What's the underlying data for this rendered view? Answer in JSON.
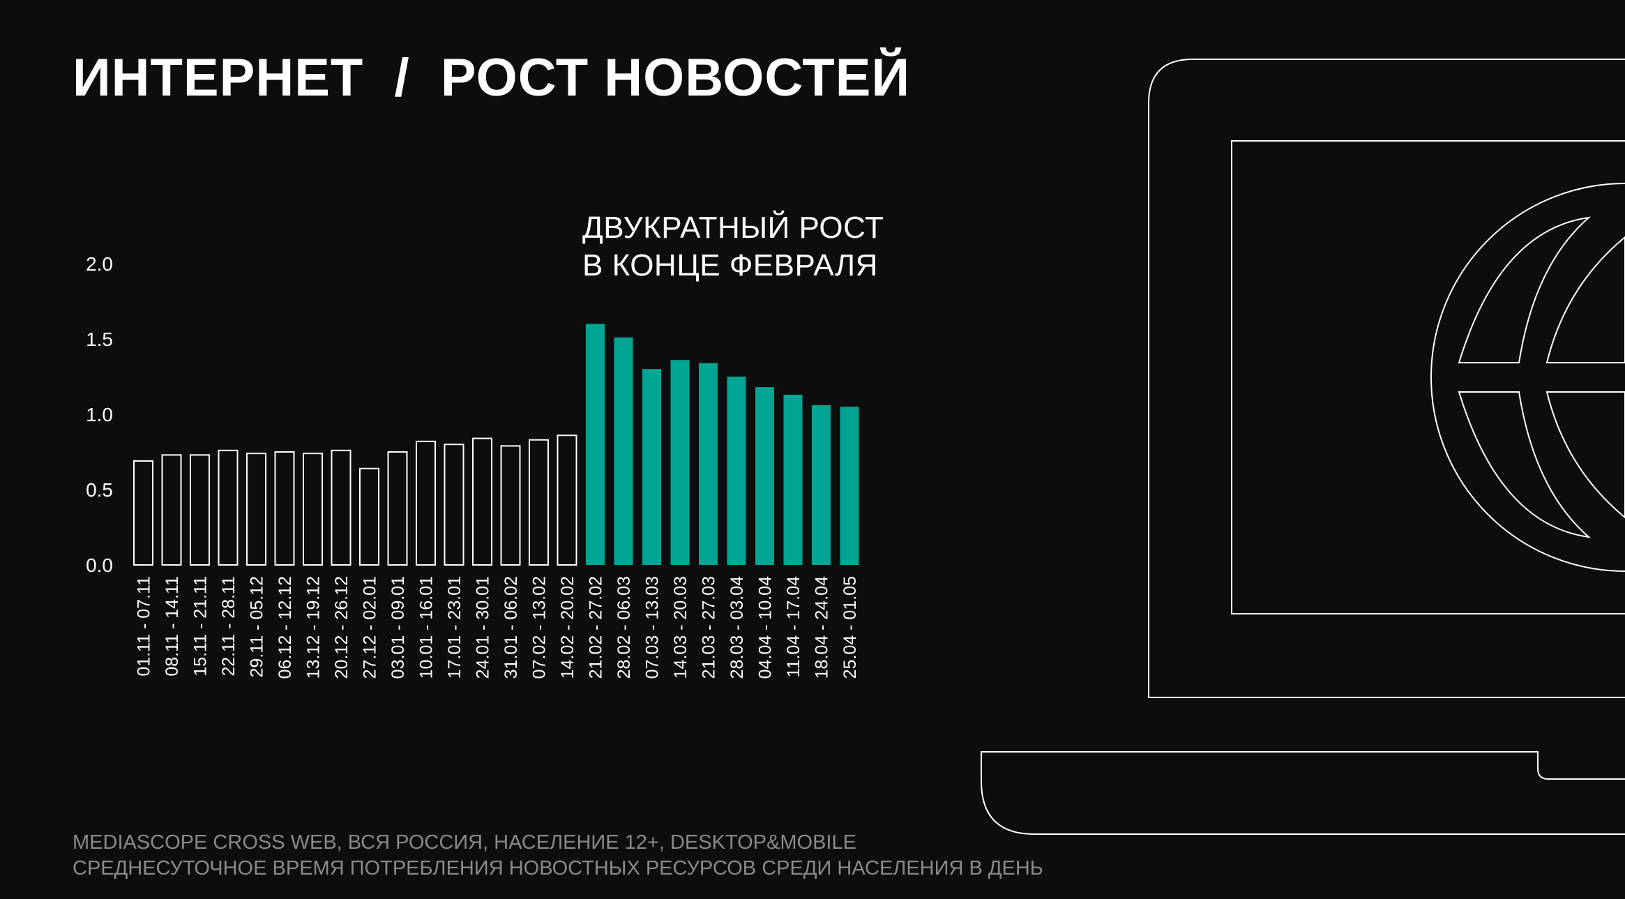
{
  "header": {
    "title": "ИНТЕРНЕТ  /  РОСТ НОВОСТЕЙ"
  },
  "annotation": {
    "line1": "ДВУКРАТНЫЙ РОСТ",
    "line2": "В КОНЦЕ ФЕВРАЛЯ"
  },
  "footer": {
    "line1": "MEDIASCOPE CROSS WEB, ВСЯ РОССИЯ, НАСЕЛЕНИЕ 12+, DESKTOP&MOBILE",
    "line2": "СРЕДНЕСУТОЧНОЕ ВРЕМЯ ПОТРЕБЛЕНИЯ НОВОСТНЫХ РЕСУРСОВ СРЕДИ НАСЕЛЕНИЯ В ДЕНЬ"
  },
  "colors": {
    "background": "#0d0d0d",
    "highlight": "#00a693",
    "outline": "#ffffff",
    "footer_text": "#8a8a8a"
  },
  "illustration": {
    "icons": [
      "laptop-icon",
      "globe-icon"
    ]
  },
  "chart_data": {
    "type": "bar",
    "categories": [
      "01.11 - 07.11",
      "08.11 - 14.11",
      "15.11 - 21.11",
      "22.11 - 28.11",
      "29.11 - 05.12",
      "06.12 - 12.12",
      "13.12 - 19.12",
      "20.12 - 26.12",
      "27.12 - 02.01",
      "03.01 - 09.01",
      "10.01 - 16.01",
      "17.01 - 23.01",
      "24.01 - 30.01",
      "31.01 - 06.02",
      "07.02 - 13.02",
      "14.02 - 20.02",
      "21.02 - 27.02",
      "28.02 - 06.03",
      "07.03 - 13.03",
      "14.03 - 20.03",
      "21.03 - 27.03",
      "28.03 - 03.04",
      "04.04 - 10.04",
      "11.04 - 17.04",
      "18.04 - 24.04",
      "25.04 - 01.05"
    ],
    "values": [
      0.69,
      0.73,
      0.73,
      0.76,
      0.74,
      0.75,
      0.74,
      0.76,
      0.64,
      0.75,
      0.82,
      0.8,
      0.84,
      0.79,
      0.83,
      0.86,
      1.6,
      1.51,
      1.3,
      1.36,
      1.34,
      1.25,
      1.18,
      1.13,
      1.06,
      1.05
    ],
    "highlight_from_index": 16,
    "yticks": [
      "0.0",
      "0.5",
      "1.0",
      "1.5",
      "2.0"
    ],
    "ylim": [
      0,
      2.0
    ],
    "title": "",
    "xlabel": "",
    "ylabel": "",
    "grid": false
  }
}
